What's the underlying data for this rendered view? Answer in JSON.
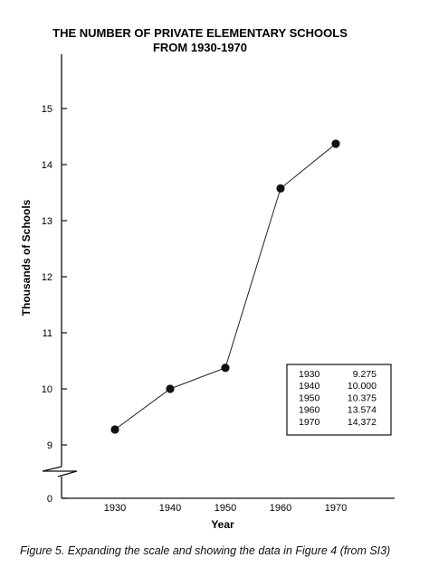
{
  "chart_data": {
    "type": "line",
    "title": [
      "THE NUMBER OF PRIVATE ELEMENTARY SCHOOLS",
      "FROM 1930-1970"
    ],
    "xlabel": "Year",
    "ylabel": "Thousands of Schools",
    "x": [
      1930,
      1940,
      1950,
      1960,
      1970
    ],
    "y": [
      9.275,
      10.0,
      10.375,
      13.574,
      14.372
    ],
    "xticks": [
      "1930",
      "1940",
      "1950",
      "1960",
      "1970"
    ],
    "yticks": [
      "9",
      "10",
      "11",
      "12",
      "13",
      "14",
      "15"
    ],
    "yzero_label": "0",
    "ylim": [
      8.5,
      15.5
    ],
    "axis_break": true,
    "table": {
      "rows": [
        [
          "1930",
          "9.275"
        ],
        [
          "1940",
          "10.000"
        ],
        [
          "1950",
          "10.375"
        ],
        [
          "1960",
          "13.574"
        ],
        [
          "1970",
          "14,372"
        ]
      ]
    }
  },
  "caption": "Figure 5. Expanding the scale and showing the data in Figure 4 (from SI3)"
}
